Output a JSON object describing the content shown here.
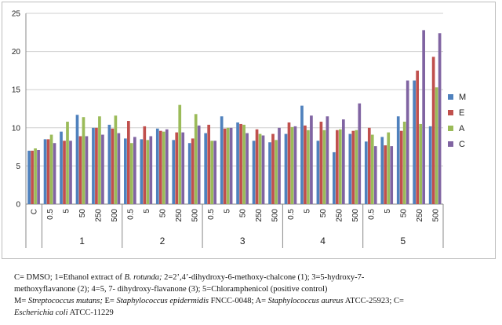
{
  "chart_data": {
    "type": "bar",
    "y_ticks": [
      "0",
      "5",
      "10",
      "15",
      "20",
      "25"
    ],
    "ylim": [
      0,
      25
    ],
    "grid": true,
    "legend_position": "right",
    "categories": [
      "C",
      "0.5",
      "5",
      "50",
      "250",
      "500",
      "0.5",
      "5",
      "50",
      "250",
      "500",
      "0.5",
      "5",
      "50",
      "250",
      "500",
      "0.5",
      "5",
      "50",
      "250",
      "500",
      "0.5",
      "5",
      "50",
      "250",
      "500"
    ],
    "groups": [
      {
        "label": "",
        "count": 1
      },
      {
        "label": "1",
        "count": 5
      },
      {
        "label": "2",
        "count": 5
      },
      {
        "label": "3",
        "count": 5
      },
      {
        "label": "4",
        "count": 5
      },
      {
        "label": "5",
        "count": 5
      }
    ],
    "series": [
      {
        "name": "M",
        "color": "#4f81bd",
        "values": [
          7.0,
          8.5,
          9.5,
          11.7,
          10.0,
          10.4,
          8.6,
          8.5,
          9.9,
          8.4,
          8.0,
          9.3,
          11.5,
          10.7,
          8.3,
          8.1,
          9.2,
          12.9,
          8.3,
          6.8,
          9.2,
          8.2,
          8.8,
          11.5,
          16.2,
          10.2
        ]
      },
      {
        "name": "E",
        "color": "#c0504d",
        "values": [
          7.0,
          8.5,
          8.3,
          8.9,
          10.0,
          9.9,
          10.9,
          10.2,
          9.6,
          9.4,
          8.6,
          10.4,
          9.9,
          10.5,
          9.8,
          9.2,
          10.7,
          10.3,
          10.8,
          9.7,
          9.6,
          10.0,
          7.7,
          9.6,
          17.5,
          19.3
        ]
      },
      {
        "name": "A",
        "color": "#9bbb59",
        "values": [
          7.3,
          9.1,
          10.8,
          11.4,
          11.5,
          11.6,
          8.0,
          8.4,
          9.5,
          13.0,
          11.8,
          8.3,
          10.0,
          10.4,
          9.2,
          8.4,
          10.1,
          9.7,
          9.7,
          9.8,
          9.7,
          9.1,
          9.4,
          10.8,
          10.5,
          15.3
        ]
      },
      {
        "name": "C",
        "color": "#8064a2",
        "values": [
          7.1,
          8.0,
          8.3,
          8.9,
          9.1,
          9.3,
          8.8,
          8.9,
          9.8,
          9.4,
          10.3,
          8.3,
          10.0,
          9.3,
          9.0,
          10.0,
          10.2,
          11.6,
          11.5,
          11.1,
          13.2,
          7.6,
          7.6,
          16.2,
          22.8,
          22.4
        ]
      }
    ]
  },
  "caption": {
    "line1_a": "C= DMSO; 1=Ethanol extract of ",
    "line1_b": "B. rotunda;",
    "line1_c": " 2=2’,4’-dihydroxy-6-methoxy-chalcone (1); 3=5-hydroxy-7-",
    "line2": "methoxyflavanone (2); 4=5, 7- dihydroxy-flavanone (3); 5=Chloramphenicol (positive control)",
    "line3_a": "M= ",
    "line3_b": "Streptococcus mutans;",
    "line3_c": " E= ",
    "line3_d": "Staphylococcus epidermidis",
    "line3_e": " FNCC-0048; A= ",
    "line3_f": "Staphylococcus aureus",
    "line3_g": " ATCC-25923; C=",
    "line4_a": "Escherichia coli",
    "line4_b": " ATCC-11229"
  }
}
